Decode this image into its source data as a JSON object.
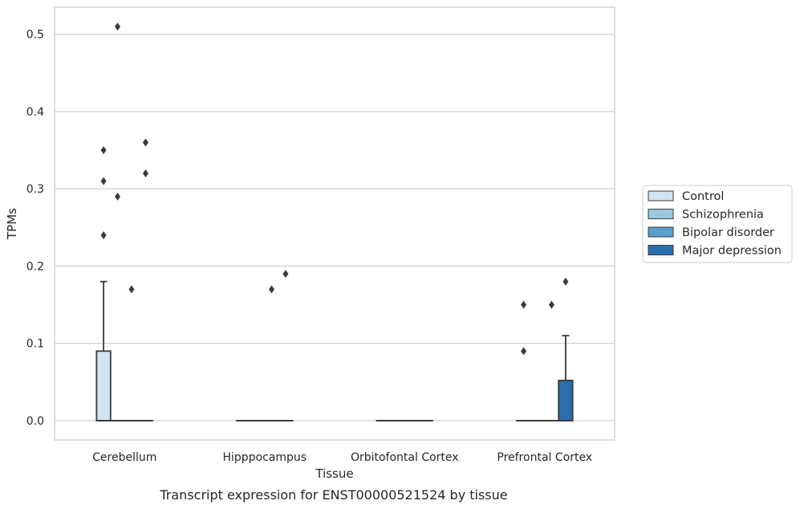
{
  "caption": "Transcript expression for ENST00000521524 by tissue",
  "chart_data": {
    "type": "box",
    "xlabel": "Tissue",
    "ylabel": "TPMs",
    "ylim": [
      -0.025,
      0.535
    ],
    "yticks": [
      0.0,
      0.1,
      0.2,
      0.3,
      0.4,
      0.5
    ],
    "ytick_labels": [
      "0.0",
      "0.1",
      "0.2",
      "0.3",
      "0.4",
      "0.5"
    ],
    "grid": true,
    "legend_position": "right",
    "categories": [
      "Cerebellum",
      "Hipppocampus",
      "Orbitofontal Cortex",
      "Prefrontal Cortex"
    ],
    "series": [
      {
        "name": "Control",
        "color": "#d3e3f1",
        "boxes": [
          {
            "q1": 0.0,
            "median": 0.0,
            "q3": 0.09,
            "whisker_low": 0.0,
            "whisker_high": 0.18,
            "outliers": [
              0.24,
              0.31,
              0.35
            ]
          },
          {
            "q1": 0.0,
            "median": 0.0,
            "q3": 0.0,
            "whisker_low": 0.0,
            "whisker_high": 0.0,
            "outliers": []
          },
          {
            "q1": 0.0,
            "median": 0.0,
            "q3": 0.0,
            "whisker_low": 0.0,
            "whisker_high": 0.0,
            "outliers": []
          },
          {
            "q1": 0.0,
            "median": 0.0,
            "q3": 0.0,
            "whisker_low": 0.0,
            "whisker_high": 0.0,
            "outliers": [
              0.09,
              0.15
            ]
          }
        ]
      },
      {
        "name": "Schizophrenia",
        "color": "#9ac8e0",
        "boxes": [
          {
            "q1": 0.0,
            "median": 0.0,
            "q3": 0.0,
            "whisker_low": 0.0,
            "whisker_high": 0.0,
            "outliers": [
              0.29,
              0.51
            ]
          },
          {
            "q1": 0.0,
            "median": 0.0,
            "q3": 0.0,
            "whisker_low": 0.0,
            "whisker_high": 0.0,
            "outliers": []
          },
          {
            "q1": 0.0,
            "median": 0.0,
            "q3": 0.0,
            "whisker_low": 0.0,
            "whisker_high": 0.0,
            "outliers": []
          },
          {
            "q1": 0.0,
            "median": 0.0,
            "q3": 0.0,
            "whisker_low": 0.0,
            "whisker_high": 0.0,
            "outliers": []
          }
        ]
      },
      {
        "name": "Bipolar disorder",
        "color": "#5a9fcd",
        "boxes": [
          {
            "q1": 0.0,
            "median": 0.0,
            "q3": 0.0,
            "whisker_low": 0.0,
            "whisker_high": 0.0,
            "outliers": [
              0.17
            ]
          },
          {
            "q1": 0.0,
            "median": 0.0,
            "q3": 0.0,
            "whisker_low": 0.0,
            "whisker_high": 0.0,
            "outliers": [
              0.17
            ]
          },
          {
            "q1": 0.0,
            "median": 0.0,
            "q3": 0.0,
            "whisker_low": 0.0,
            "whisker_high": 0.0,
            "outliers": []
          },
          {
            "q1": 0.0,
            "median": 0.0,
            "q3": 0.0,
            "whisker_low": 0.0,
            "whisker_high": 0.0,
            "outliers": [
              0.15
            ]
          }
        ]
      },
      {
        "name": "Major depression",
        "color": "#2a6eb0",
        "boxes": [
          {
            "q1": 0.0,
            "median": 0.0,
            "q3": 0.0,
            "whisker_low": 0.0,
            "whisker_high": 0.0,
            "outliers": [
              0.32,
              0.36
            ]
          },
          {
            "q1": 0.0,
            "median": 0.0,
            "q3": 0.0,
            "whisker_low": 0.0,
            "whisker_high": 0.0,
            "outliers": [
              0.19
            ]
          },
          {
            "q1": 0.0,
            "median": 0.0,
            "q3": 0.0,
            "whisker_low": 0.0,
            "whisker_high": 0.0,
            "outliers": []
          },
          {
            "q1": 0.0,
            "median": 0.0,
            "q3": 0.052,
            "whisker_low": 0.0,
            "whisker_high": 0.11,
            "outliers": [
              0.18
            ]
          }
        ]
      }
    ]
  }
}
